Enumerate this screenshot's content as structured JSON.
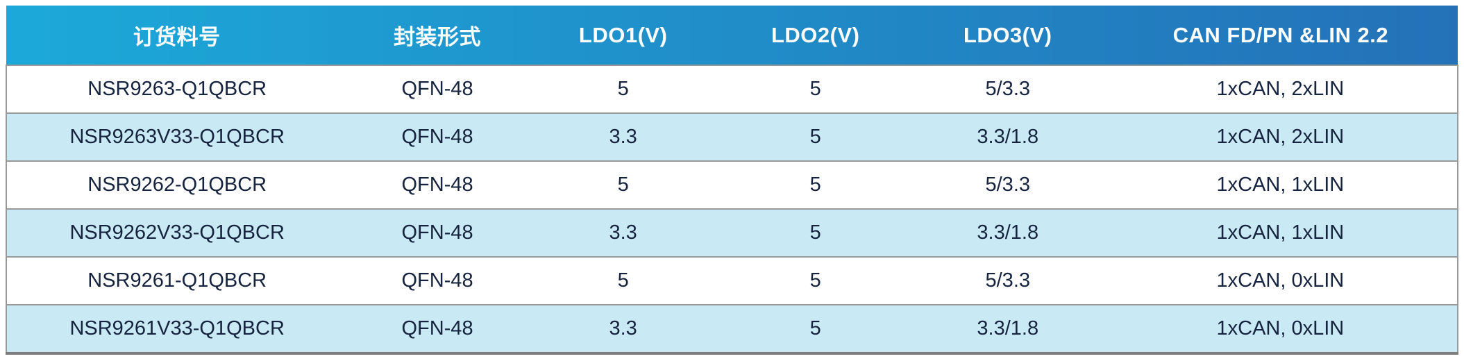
{
  "table": {
    "columns": [
      {
        "label": "订货料号"
      },
      {
        "label": "封装形式"
      },
      {
        "label": "LDO1(V)"
      },
      {
        "label": "LDO2(V)"
      },
      {
        "label": "LDO3(V)"
      },
      {
        "label": "CAN FD/PN &LIN 2.2"
      }
    ],
    "rows": [
      {
        "cells": [
          "NSR9263-Q1QBCR",
          "QFN-48",
          "5",
          "5",
          "5/3.3",
          "1xCAN, 2xLIN"
        ]
      },
      {
        "cells": [
          "NSR9263V33-Q1QBCR",
          "QFN-48",
          "3.3",
          "5",
          "3.3/1.8",
          "1xCAN, 2xLIN"
        ]
      },
      {
        "cells": [
          "NSR9262-Q1QBCR",
          "QFN-48",
          "5",
          "5",
          "5/3.3",
          "1xCAN, 1xLIN"
        ]
      },
      {
        "cells": [
          "NSR9262V33-Q1QBCR",
          "QFN-48",
          "3.3",
          "5",
          "3.3/1.8",
          "1xCAN, 1xLIN"
        ]
      },
      {
        "cells": [
          "NSR9261-Q1QBCR",
          "QFN-48",
          "5",
          "5",
          "5/3.3",
          "1xCAN, 0xLIN"
        ]
      },
      {
        "cells": [
          "NSR9261V33-Q1QBCR",
          "QFN-48",
          "3.3",
          "5",
          "3.3/1.8",
          "1xCAN, 0xLIN"
        ]
      }
    ]
  },
  "colors": {
    "header_gradient_left": "#1CA9D9",
    "header_gradient_right": "#2471B8",
    "header_text": "#FFFFFF",
    "row_stripe": "#C9EAF4",
    "row_plain": "#FFFFFF",
    "body_text": "#16233E",
    "grid_line": "#999999",
    "bottom_border": "#7E7E7E"
  }
}
